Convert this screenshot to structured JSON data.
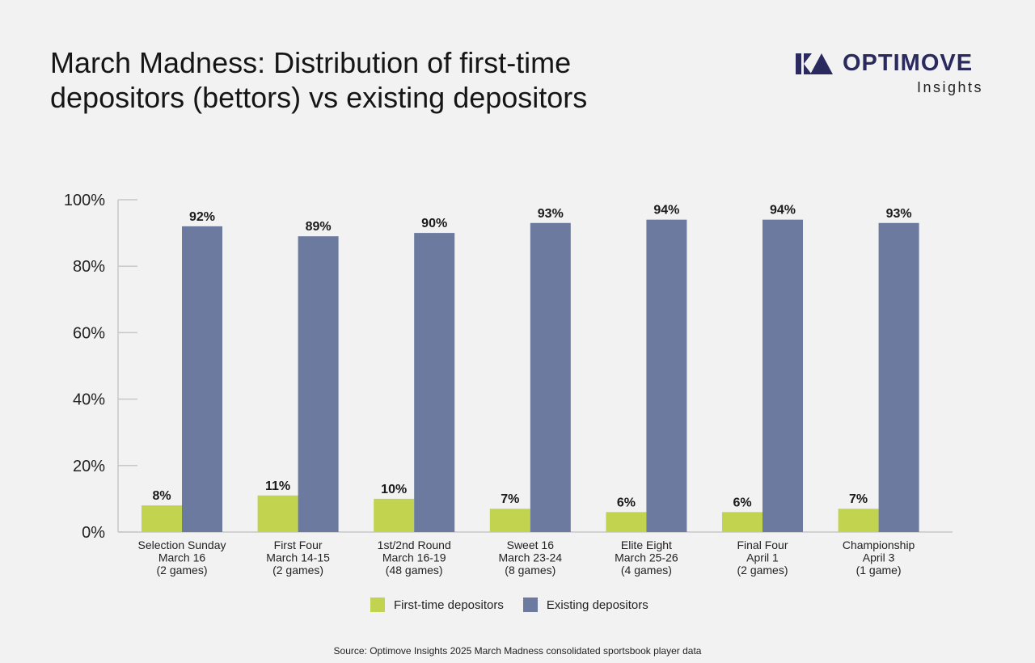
{
  "title": "March Madness: Distribution of first-time depositors (bettors) vs existing depositors",
  "logo": {
    "wordmark": "OPTIMOVE",
    "subtitle": "Insights",
    "icon": "optimove-logo-icon",
    "color": "#2b2a5e"
  },
  "colors": {
    "first_time": "#c2d34f",
    "existing": "#6b7a9e",
    "axis": "#c8c8c8",
    "background": "#f2f2f2"
  },
  "chart_data": {
    "type": "bar",
    "categories": [
      [
        "Selection Sunday",
        "March 16",
        "(2 games)"
      ],
      [
        "First Four",
        "March 14-15",
        "(2 games)"
      ],
      [
        "1st/2nd Round",
        "March 16-19",
        "(48 games)"
      ],
      [
        "Sweet 16",
        "March 23-24",
        "(8 games)"
      ],
      [
        "Elite Eight",
        "March 25-26",
        "(4 games)"
      ],
      [
        "Final Four",
        "April 1",
        "(2 games)"
      ],
      [
        "Championship",
        "April 3",
        "(1 game)"
      ]
    ],
    "series": [
      {
        "name": "First-time depositors",
        "values": [
          8,
          11,
          10,
          7,
          6,
          6,
          7
        ]
      },
      {
        "name": "Existing depositors",
        "values": [
          92,
          89,
          90,
          93,
          94,
          94,
          93
        ]
      }
    ],
    "value_suffix": "%",
    "ylim": [
      0,
      100
    ],
    "yticks": [
      0,
      20,
      40,
      60,
      80,
      100
    ],
    "ytick_labels": [
      "0%",
      "20%",
      "40%",
      "60%",
      "80%",
      "100%"
    ],
    "xlabel": "",
    "ylabel": "",
    "grid": false,
    "legend_position": "bottom"
  },
  "source": "Source: Optimove Insights 2025 March Madness consolidated sportsbook player data"
}
